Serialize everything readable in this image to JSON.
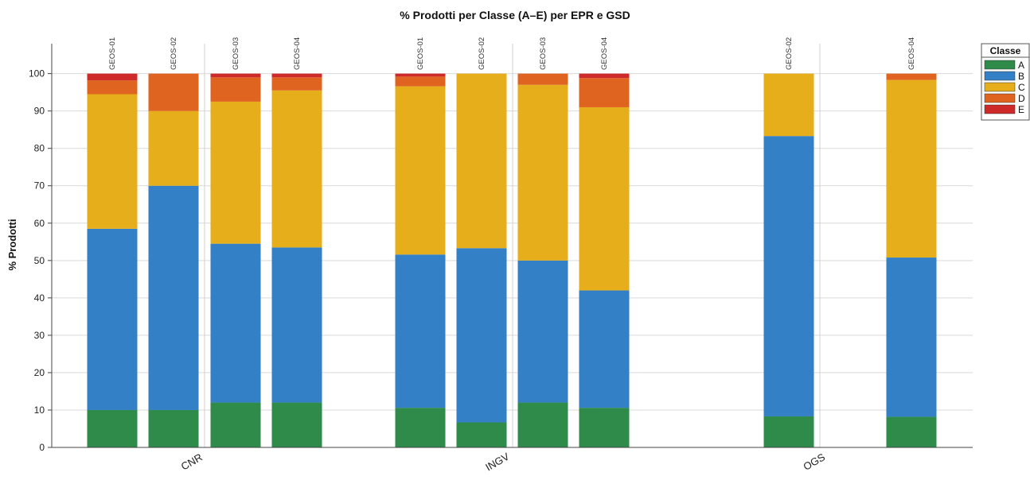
{
  "chart_data": {
    "type": "bar",
    "stacked": true,
    "title": "% Prodotti per Classe (A–E) per EPR e GSD",
    "xlabel": "",
    "ylabel": "% Prodotti",
    "ylim": [
      0,
      108
    ],
    "yticks": [
      0,
      10,
      20,
      30,
      40,
      50,
      60,
      70,
      80,
      90,
      100
    ],
    "grid": true,
    "legend": {
      "title": "Classe",
      "position": "top-right",
      "entries": [
        "A",
        "B",
        "C",
        "D",
        "E"
      ]
    },
    "colors": {
      "A": "#2e8b4a",
      "B": "#3380c6",
      "C": "#e6ae1a",
      "D": "#df6420",
      "E": "#cf2a2a"
    },
    "groups": [
      {
        "name": "CNR",
        "bars": [
          {
            "gsd": "GEOS-01",
            "A": 10,
            "B": 48.5,
            "C": 36,
            "D": 3.7,
            "E": 1.8
          },
          {
            "gsd": "GEOS-02",
            "A": 10,
            "B": 60,
            "C": 20,
            "D": 10,
            "E": 0
          },
          {
            "gsd": "GEOS-03",
            "A": 12,
            "B": 42.5,
            "C": 38,
            "D": 6.5,
            "E": 1
          },
          {
            "gsd": "GEOS-04",
            "A": 12,
            "B": 41.5,
            "C": 42,
            "D": 3.5,
            "E": 1
          }
        ]
      },
      {
        "name": "INGV",
        "bars": [
          {
            "gsd": "GEOS-01",
            "A": 10.6,
            "B": 41,
            "C": 45,
            "D": 2.6,
            "E": 0.8
          },
          {
            "gsd": "GEOS-02",
            "A": 6.7,
            "B": 46.6,
            "C": 46.7,
            "D": 0,
            "E": 0
          },
          {
            "gsd": "GEOS-03",
            "A": 12,
            "B": 38,
            "C": 47,
            "D": 3,
            "E": 0
          },
          {
            "gsd": "GEOS-04",
            "A": 10.6,
            "B": 31.4,
            "C": 49,
            "D": 7.8,
            "E": 1.2
          }
        ]
      },
      {
        "name": "OGS",
        "bars": [
          {
            "gsd": "GEOS-02",
            "A": 8.3,
            "B": 75,
            "C": 16.7,
            "D": 0,
            "E": 0
          },
          {
            "gsd": "GEOS-04",
            "A": 8.2,
            "B": 42.6,
            "C": 47.5,
            "D": 1.7,
            "E": 0
          }
        ]
      }
    ]
  }
}
